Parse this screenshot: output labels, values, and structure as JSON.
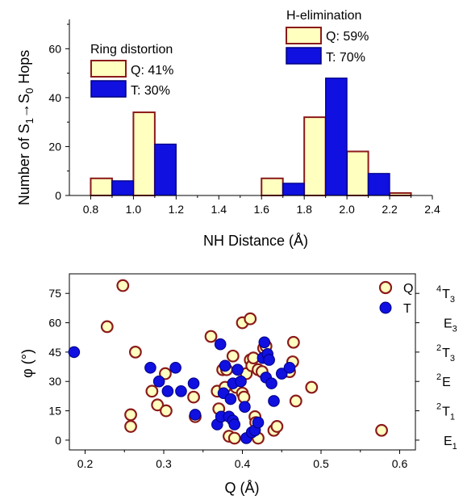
{
  "colors": {
    "q_fill": "#FFFFC0",
    "q_edge": "#8B1A1A",
    "t_fill": "#1010E0",
    "t_edge": "#000080"
  },
  "top": {
    "ylabel_main": "Number of S",
    "ylabel_sub1": "1",
    "ylabel_arrow": "→S",
    "ylabel_sub0": "0",
    "ylabel_tail": " Hops",
    "xlabel": "NH Distance (Å)",
    "group_titles": [
      "Ring distortion",
      "H-elimination"
    ],
    "legend_ring": [
      "Q: 41%",
      "T: 30%"
    ],
    "legend_h": [
      "Q: 59%",
      "T: 70%"
    ]
  },
  "bottom": {
    "xlabel": "Q (Å)",
    "ylabel": "φ (°)",
    "legend": [
      "Q",
      "T"
    ],
    "right_labels": [
      {
        "sup": "4",
        "base": "T",
        "sub": "3",
        "phi": 75
      },
      {
        "sup": "",
        "base": "E",
        "sub": "3",
        "phi": 60
      },
      {
        "sup": "2",
        "base": "T",
        "sub": "3",
        "phi": 45
      },
      {
        "sup": "2",
        "base": "E",
        "sub": "",
        "phi": 30
      },
      {
        "sup": "2",
        "base": "T",
        "sub": "1",
        "phi": 15
      },
      {
        "sup": "",
        "base": "E",
        "sub": "1",
        "phi": 0
      }
    ]
  },
  "chart_data": [
    {
      "type": "bar",
      "xlabel": "NH Distance (Å)",
      "ylabel": "Number of S1→S0 Hops",
      "xlim": [
        0.7,
        2.4
      ],
      "ylim": [
        0,
        72
      ],
      "xticks": [
        0.8,
        1.0,
        1.2,
        1.4,
        1.6,
        1.8,
        2.0,
        2.2,
        2.4
      ],
      "yticks": [
        0,
        20,
        40,
        60
      ],
      "bin_width": 0.1,
      "series": [
        {
          "name": "Q",
          "bins": [
            {
              "x": 0.8,
              "value": 7
            },
            {
              "x": 1.0,
              "value": 34
            },
            {
              "x": 1.6,
              "value": 7
            },
            {
              "x": 1.8,
              "value": 32
            },
            {
              "x": 2.0,
              "value": 18
            },
            {
              "x": 2.2,
              "value": 1
            }
          ]
        },
        {
          "name": "T",
          "bins": [
            {
              "x": 0.9,
              "value": 6
            },
            {
              "x": 1.1,
              "value": 21
            },
            {
              "x": 1.7,
              "value": 5
            },
            {
              "x": 1.9,
              "value": 48
            },
            {
              "x": 2.1,
              "value": 9
            }
          ]
        }
      ]
    },
    {
      "type": "scatter",
      "xlabel": "Q (Å)",
      "ylabel": "φ (°)",
      "xlim": [
        0.18,
        0.62
      ],
      "ylim": [
        -5,
        85
      ],
      "xticks": [
        0.2,
        0.3,
        0.4,
        0.5,
        0.6
      ],
      "yticks": [
        0,
        15,
        30,
        45,
        60,
        75
      ],
      "series": [
        {
          "name": "Q",
          "points": [
            [
              0.248,
              79
            ],
            [
              0.228,
              58
            ],
            [
              0.264,
              45
            ],
            [
              0.258,
              13
            ],
            [
              0.258,
              7
            ],
            [
              0.285,
              25
            ],
            [
              0.292,
              18
            ],
            [
              0.302,
              34
            ],
            [
              0.303,
              15
            ],
            [
              0.338,
              22
            ],
            [
              0.34,
              12
            ],
            [
              0.36,
              53
            ],
            [
              0.368,
              25
            ],
            [
              0.37,
              16
            ],
            [
              0.375,
              36
            ],
            [
              0.378,
              27
            ],
            [
              0.38,
              36
            ],
            [
              0.383,
              2
            ],
            [
              0.388,
              43
            ],
            [
              0.39,
              1
            ],
            [
              0.392,
              27
            ],
            [
              0.4,
              24
            ],
            [
              0.4,
              60
            ],
            [
              0.402,
              22
            ],
            [
              0.405,
              34
            ],
            [
              0.41,
              62
            ],
            [
              0.41,
              41
            ],
            [
              0.412,
              38
            ],
            [
              0.414,
              42
            ],
            [
              0.416,
              12
            ],
            [
              0.417,
              9
            ],
            [
              0.42,
              36
            ],
            [
              0.42,
              1
            ],
            [
              0.425,
              35
            ],
            [
              0.427,
              47
            ],
            [
              0.43,
              48
            ],
            [
              0.44,
              5
            ],
            [
              0.444,
              7
            ],
            [
              0.46,
              35
            ],
            [
              0.464,
              40
            ],
            [
              0.465,
              50
            ],
            [
              0.468,
              20
            ],
            [
              0.488,
              27
            ],
            [
              0.577,
              5
            ]
          ]
        },
        {
          "name": "T",
          "points": [
            [
              0.186,
              45
            ],
            [
              0.283,
              37
            ],
            [
              0.294,
              30
            ],
            [
              0.305,
              25
            ],
            [
              0.315,
              37
            ],
            [
              0.322,
              25
            ],
            [
              0.338,
              29
            ],
            [
              0.34,
              13
            ],
            [
              0.368,
              8
            ],
            [
              0.372,
              49
            ],
            [
              0.373,
              12
            ],
            [
              0.376,
              24
            ],
            [
              0.378,
              38
            ],
            [
              0.383,
              12
            ],
            [
              0.385,
              21
            ],
            [
              0.388,
              29
            ],
            [
              0.388,
              10
            ],
            [
              0.39,
              8
            ],
            [
              0.394,
              36
            ],
            [
              0.398,
              30
            ],
            [
              0.403,
              17
            ],
            [
              0.405,
              1
            ],
            [
              0.412,
              4
            ],
            [
              0.416,
              5
            ],
            [
              0.42,
              9
            ],
            [
              0.426,
              42
            ],
            [
              0.428,
              50
            ],
            [
              0.43,
              32
            ],
            [
              0.432,
              44
            ],
            [
              0.434,
              41
            ],
            [
              0.437,
              29
            ],
            [
              0.44,
              20
            ],
            [
              0.45,
              34
            ],
            [
              0.46,
              37
            ]
          ]
        }
      ]
    }
  ]
}
